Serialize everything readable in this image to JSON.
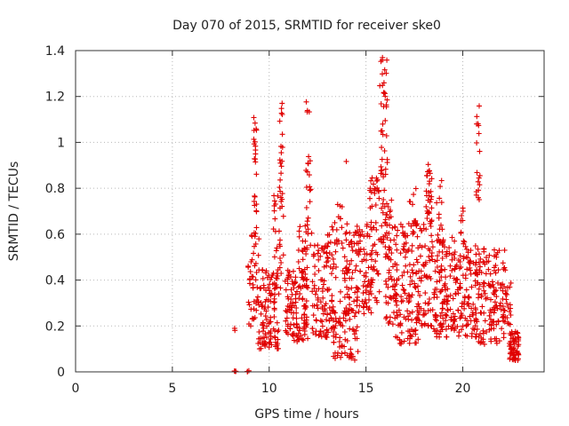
{
  "chart_data": {
    "type": "scatter",
    "title": "Day 070 of 2015, SRMTID for receiver ske0",
    "xlabel": "GPS time / hours",
    "ylabel": "SRMTID / TECUs",
    "xlim": [
      0,
      24.2
    ],
    "ylim": [
      0,
      1.4
    ],
    "xticks": [
      0,
      5,
      10,
      15,
      20
    ],
    "xtick_labels": [
      "0",
      "5",
      "10",
      "15",
      "20"
    ],
    "yticks": [
      0,
      0.2,
      0.4,
      0.6,
      0.8,
      1,
      1.2,
      1.4
    ],
    "ytick_labels": [
      "0",
      "0.2",
      "0.4",
      "0.6",
      "0.8",
      "1",
      "1.2",
      "1.4"
    ],
    "grid": true,
    "marker": "+",
    "marker_color": "#e00000",
    "series": [
      {
        "name": "ske0",
        "clusters": [
          {
            "x0": 8.2,
            "x1": 8.3,
            "ymin": 0.0,
            "ymax": 0.005,
            "n": 3
          },
          {
            "x0": 8.85,
            "x1": 8.95,
            "ymin": 0.0,
            "ymax": 0.005,
            "n": 3
          },
          {
            "x0": 8.2,
            "x1": 8.3,
            "ymin": 0.18,
            "ymax": 0.2,
            "n": 2
          },
          {
            "x0": 8.9,
            "x1": 9.5,
            "ymin": 0.2,
            "ymax": 0.6,
            "n": 40
          },
          {
            "x0": 9.2,
            "x1": 9.35,
            "ymin": 0.6,
            "ymax": 1.12,
            "n": 25
          },
          {
            "x0": 9.4,
            "x1": 10.5,
            "ymin": 0.1,
            "ymax": 0.45,
            "n": 110
          },
          {
            "x0": 10.2,
            "x1": 10.8,
            "ymin": 0.35,
            "ymax": 0.8,
            "n": 30
          },
          {
            "x0": 10.5,
            "x1": 10.7,
            "ymin": 0.75,
            "ymax": 1.2,
            "n": 20
          },
          {
            "x0": 10.8,
            "x1": 12.0,
            "ymin": 0.13,
            "ymax": 0.45,
            "n": 120
          },
          {
            "x0": 11.5,
            "x1": 12.0,
            "ymin": 0.4,
            "ymax": 0.65,
            "n": 25
          },
          {
            "x0": 11.9,
            "x1": 12.2,
            "ymin": 0.55,
            "ymax": 1.18,
            "n": 25
          },
          {
            "x0": 12.2,
            "x1": 13.5,
            "ymin": 0.15,
            "ymax": 0.6,
            "n": 130
          },
          {
            "x0": 13.0,
            "x1": 13.8,
            "ymin": 0.55,
            "ymax": 0.75,
            "n": 15
          },
          {
            "x0": 13.3,
            "x1": 14.6,
            "ymin": 0.05,
            "ymax": 0.35,
            "n": 70
          },
          {
            "x0": 13.8,
            "x1": 15.3,
            "ymin": 0.25,
            "ymax": 0.65,
            "n": 120
          },
          {
            "x0": 13.9,
            "x1": 14.0,
            "ymin": 0.9,
            "ymax": 0.93,
            "n": 1
          },
          {
            "x0": 15.2,
            "x1": 15.7,
            "ymin": 0.3,
            "ymax": 0.85,
            "n": 50
          },
          {
            "x0": 15.7,
            "x1": 16.1,
            "ymin": 0.55,
            "ymax": 1.38,
            "n": 55
          },
          {
            "x0": 16.0,
            "x1": 16.6,
            "ymin": 0.2,
            "ymax": 0.75,
            "n": 70
          },
          {
            "x0": 16.5,
            "x1": 17.8,
            "ymin": 0.12,
            "ymax": 0.65,
            "n": 130
          },
          {
            "x0": 17.2,
            "x1": 17.6,
            "ymin": 0.6,
            "ymax": 0.8,
            "n": 12
          },
          {
            "x0": 17.8,
            "x1": 18.4,
            "ymin": 0.2,
            "ymax": 0.65,
            "n": 50
          },
          {
            "x0": 18.1,
            "x1": 18.4,
            "ymin": 0.65,
            "ymax": 0.93,
            "n": 30
          },
          {
            "x0": 18.4,
            "x1": 19.6,
            "ymin": 0.15,
            "ymax": 0.6,
            "n": 120
          },
          {
            "x0": 18.6,
            "x1": 19.0,
            "ymin": 0.55,
            "ymax": 0.85,
            "n": 15
          },
          {
            "x0": 19.5,
            "x1": 20.8,
            "ymin": 0.15,
            "ymax": 0.55,
            "n": 120
          },
          {
            "x0": 19.9,
            "x1": 20.1,
            "ymin": 0.55,
            "ymax": 0.75,
            "n": 10
          },
          {
            "x0": 20.7,
            "x1": 20.9,
            "ymin": 0.75,
            "ymax": 1.22,
            "n": 18
          },
          {
            "x0": 20.8,
            "x1": 22.2,
            "ymin": 0.12,
            "ymax": 0.55,
            "n": 130
          },
          {
            "x0": 22.1,
            "x1": 22.5,
            "ymin": 0.2,
            "ymax": 0.4,
            "n": 20
          },
          {
            "x0": 22.4,
            "x1": 22.9,
            "ymin": 0.05,
            "ymax": 0.18,
            "n": 60
          }
        ]
      }
    ]
  }
}
